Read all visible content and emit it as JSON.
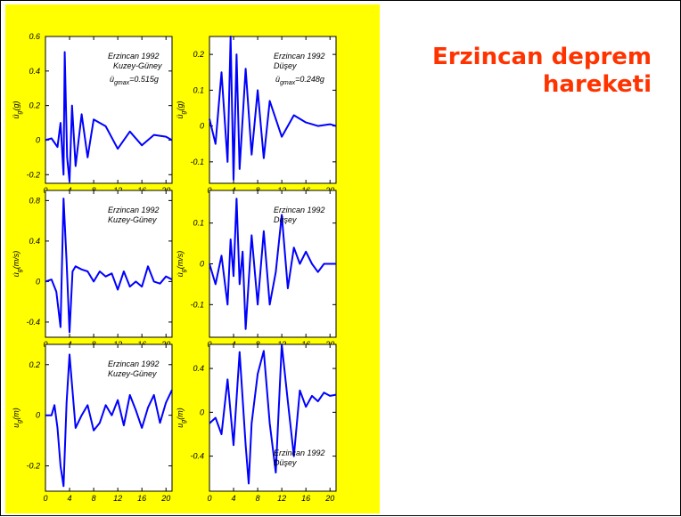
{
  "slide": {
    "title_line1": "Erzincan deprem",
    "title_line2": "hareketi",
    "title_color": "#ff3300",
    "panel_color": "#ffff00",
    "line_color": "#0000ff"
  },
  "chart_data": [
    {
      "id": "acc-ns",
      "type": "line",
      "x_range": [
        0,
        21
      ],
      "xticks": [
        0,
        4,
        8,
        12,
        16,
        20
      ],
      "y_range": [
        -0.25,
        0.6
      ],
      "yticks": [
        -0.2,
        0,
        0.2,
        0.4,
        0.6
      ],
      "ylabel": "üₕ(g)",
      "ylabel_main": "ü",
      "ylabel_sub": "g",
      "ylabel_unit": "(g)",
      "annotation": [
        "Erzincan 1992",
        "Kuzey-Güney",
        "üₕmax=0.515g"
      ],
      "peak_label": "=0.515g",
      "peak_sub": "gmax",
      "x": [
        0,
        1,
        2,
        2.5,
        3,
        3.2,
        3.6,
        4,
        4.4,
        5,
        6,
        7,
        8,
        10,
        12,
        14,
        16,
        18,
        20,
        21
      ],
      "y": [
        0,
        0.01,
        -0.04,
        0.1,
        -0.2,
        0.51,
        -0.1,
        -0.24,
        0.2,
        -0.15,
        0.15,
        -0.1,
        0.12,
        0.08,
        -0.05,
        0.05,
        -0.03,
        0.03,
        0.02,
        0
      ]
    },
    {
      "id": "acc-v",
      "type": "line",
      "x_range": [
        0,
        21
      ],
      "xticks": [
        0,
        4,
        8,
        12,
        16,
        20
      ],
      "y_range": [
        -0.16,
        0.25
      ],
      "yticks": [
        -0.1,
        0,
        0.1,
        0.2
      ],
      "ylabel_main": "ü",
      "ylabel_sub": "g",
      "ylabel_unit": "(g)",
      "annotation": [
        "Erzincan 1992",
        "Düşey"
      ],
      "peak_label": "=0.248g",
      "peak_sub": "gmax",
      "x": [
        0,
        1,
        2,
        3,
        3.5,
        4,
        4.5,
        5,
        6,
        7,
        8,
        9,
        10,
        12,
        14,
        16,
        18,
        20,
        21
      ],
      "y": [
        0.02,
        -0.05,
        0.15,
        -0.1,
        0.25,
        -0.15,
        0.2,
        -0.12,
        0.16,
        -0.08,
        0.1,
        -0.09,
        0.07,
        -0.03,
        0.03,
        0.01,
        0.0,
        0.005,
        0
      ]
    },
    {
      "id": "vel-ns",
      "type": "line",
      "x_range": [
        0,
        21
      ],
      "xticks": [
        0,
        4,
        8,
        12,
        16,
        20
      ],
      "y_range": [
        -0.55,
        0.9
      ],
      "yticks": [
        -0.4,
        0,
        0.4,
        0.8
      ],
      "ylabel_main": "u̇",
      "ylabel_sub": "g",
      "ylabel_unit": "(m/s)",
      "annotation": [
        "Erzincan 1992",
        "Kuzey-Güney"
      ],
      "x": [
        0,
        1,
        1.8,
        2.5,
        3,
        3.5,
        4,
        4.5,
        5,
        6,
        7,
        8,
        9,
        10,
        11,
        12,
        13,
        14,
        15,
        16,
        17,
        18,
        19,
        20,
        21
      ],
      "y": [
        0,
        0.02,
        -0.1,
        -0.45,
        0.82,
        0.2,
        -0.5,
        0.1,
        0.15,
        0.12,
        0.1,
        0.0,
        0.1,
        0.05,
        0.08,
        -0.08,
        0.1,
        -0.05,
        0.0,
        -0.05,
        0.15,
        0.0,
        -0.02,
        0.05,
        0.02
      ]
    },
    {
      "id": "vel-v",
      "type": "line",
      "x_range": [
        0,
        21
      ],
      "xticks": [
        0,
        4,
        8,
        12,
        16,
        20
      ],
      "y_range": [
        -0.18,
        0.18
      ],
      "yticks": [
        -0.1,
        0,
        0.1
      ],
      "ylabel_main": "u̇",
      "ylabel_sub": "g",
      "ylabel_unit": "(m/s)",
      "annotation": [
        "Erzincan 1992",
        "Düşey"
      ],
      "x": [
        0,
        1,
        2,
        3,
        3.5,
        4,
        4.5,
        5,
        5.5,
        6,
        7,
        8,
        9,
        10,
        11,
        12,
        13,
        14,
        15,
        16,
        17,
        18,
        19,
        20,
        21
      ],
      "y": [
        0.0,
        -0.05,
        0.02,
        -0.1,
        0.06,
        -0.03,
        0.16,
        -0.05,
        0.03,
        -0.16,
        0.07,
        -0.1,
        0.08,
        -0.1,
        -0.02,
        0.12,
        -0.06,
        0.04,
        0.0,
        0.03,
        0.0,
        -0.02,
        0.0,
        0.0,
        0.0
      ]
    },
    {
      "id": "disp-ns",
      "type": "line",
      "x_range": [
        0,
        21
      ],
      "xticks": [
        0,
        4,
        8,
        12,
        16,
        20
      ],
      "y_range": [
        -0.3,
        0.28
      ],
      "yticks": [
        -0.2,
        0,
        0.2
      ],
      "ylabel_main": "u",
      "ylabel_sub": "g",
      "ylabel_unit": "(m)",
      "annotation": [
        "Erzincan 1992",
        "Kuzey-Güney"
      ],
      "x": [
        0,
        1,
        1.5,
        2,
        2.5,
        3,
        3.5,
        4,
        5,
        6,
        7,
        8,
        9,
        10,
        11,
        12,
        13,
        14,
        15,
        16,
        17,
        18,
        19,
        20,
        21
      ],
      "y": [
        0,
        0.0,
        0.04,
        -0.05,
        -0.2,
        -0.28,
        0.05,
        0.24,
        -0.05,
        0.0,
        0.04,
        -0.06,
        -0.03,
        0.04,
        0.0,
        0.06,
        -0.04,
        0.08,
        0.02,
        -0.05,
        0.03,
        0.08,
        -0.03,
        0.05,
        0.1
      ]
    },
    {
      "id": "disp-v",
      "type": "line",
      "x_range": [
        0,
        21
      ],
      "xticks": [
        0,
        4,
        8,
        12,
        16,
        20
      ],
      "y_range": [
        -0.72,
        0.62
      ],
      "yticks": [
        -0.4,
        0,
        0.4
      ],
      "ylabel_main": "u",
      "ylabel_sub": "g",
      "ylabel_unit": "(m)",
      "annotation": [
        "Erzincan 1992",
        "Düşey"
      ],
      "x": [
        0,
        1,
        2,
        3,
        4,
        5,
        6,
        6.5,
        7,
        8,
        9,
        10,
        11,
        12,
        13,
        14,
        15,
        16,
        17,
        18,
        19,
        20,
        21
      ],
      "y": [
        -0.1,
        -0.05,
        -0.2,
        0.3,
        -0.3,
        0.55,
        -0.3,
        -0.65,
        -0.1,
        0.35,
        0.56,
        -0.1,
        -0.55,
        0.62,
        0.1,
        -0.4,
        0.2,
        0.05,
        0.15,
        0.1,
        0.18,
        0.15,
        0.16
      ]
    }
  ]
}
